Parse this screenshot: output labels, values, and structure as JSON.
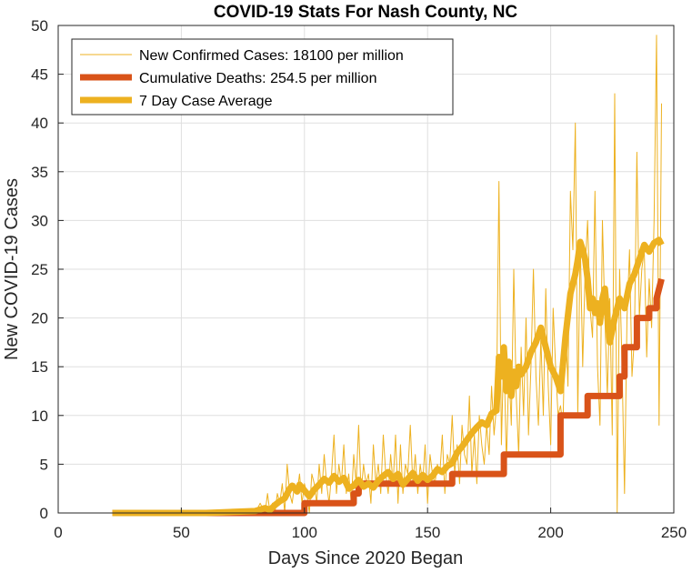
{
  "chart_data": {
    "type": "line",
    "title": "COVID-19 Stats For Nash County, NC",
    "xlabel": "Days Since 2020 Began",
    "ylabel": "New COVID-19 Cases",
    "xlim": [
      0,
      250
    ],
    "ylim": [
      0,
      50
    ],
    "xticks": [
      0,
      50,
      100,
      150,
      200,
      250
    ],
    "yticks": [
      0,
      5,
      10,
      15,
      20,
      25,
      30,
      35,
      40,
      45,
      50
    ],
    "grid": true,
    "legend_position": "top-left",
    "series": [
      {
        "name": "New Confirmed Cases: 18100 per million",
        "color": "#EDB120",
        "style": "thin",
        "x": [
          22,
          40,
          60,
          80,
          82,
          84,
          85,
          86,
          87,
          88,
          89,
          90,
          91,
          92,
          93,
          94,
          95,
          96,
          97,
          98,
          99,
          100,
          101,
          102,
          103,
          104,
          105,
          106,
          107,
          108,
          109,
          110,
          111,
          112,
          113,
          114,
          115,
          116,
          117,
          118,
          119,
          120,
          121,
          122,
          123,
          124,
          125,
          126,
          127,
          128,
          129,
          130,
          131,
          132,
          133,
          134,
          135,
          136,
          137,
          138,
          139,
          140,
          141,
          142,
          143,
          144,
          145,
          146,
          147,
          148,
          149,
          150,
          151,
          152,
          153,
          154,
          155,
          156,
          157,
          158,
          159,
          160,
          161,
          162,
          163,
          164,
          165,
          166,
          167,
          168,
          169,
          170,
          171,
          172,
          173,
          174,
          175,
          176,
          177,
          178,
          179,
          180,
          181,
          182,
          183,
          184,
          185,
          186,
          187,
          188,
          189,
          190,
          191,
          192,
          193,
          194,
          195,
          196,
          197,
          198,
          199,
          200,
          201,
          202,
          203,
          204,
          205,
          206,
          207,
          208,
          209,
          210,
          211,
          212,
          213,
          214,
          215,
          216,
          217,
          218,
          219,
          220,
          221,
          222,
          223,
          224,
          225,
          226,
          227,
          228,
          229,
          230,
          231,
          232,
          233,
          234,
          235,
          236,
          237,
          238,
          239,
          240,
          241,
          242,
          243,
          244,
          245
        ],
        "y": [
          0,
          0,
          0,
          0,
          1,
          0,
          2,
          0,
          1,
          0,
          2,
          1,
          3,
          0,
          5,
          2,
          1,
          3,
          2,
          4,
          1,
          3,
          2,
          0,
          4,
          3,
          1,
          5,
          2,
          6,
          3,
          1,
          4,
          8,
          2,
          5,
          3,
          7,
          2,
          4,
          1,
          6,
          3,
          9,
          2,
          5,
          3,
          4,
          1,
          7,
          3,
          5,
          2,
          8,
          4,
          2,
          6,
          3,
          8,
          1,
          7,
          2,
          5,
          4,
          9,
          3,
          6,
          2,
          5,
          3,
          7,
          1,
          6,
          4,
          3,
          5,
          4,
          8,
          2,
          6,
          5,
          10,
          4,
          7,
          3,
          9,
          6,
          5,
          12,
          4,
          8,
          3,
          10,
          7,
          5,
          9,
          6,
          13,
          8,
          11,
          34,
          7,
          17,
          5,
          15,
          9,
          25,
          12,
          6,
          17,
          10,
          20,
          8,
          15,
          25,
          14,
          9,
          18,
          10,
          23,
          13,
          7,
          21,
          15,
          10,
          11,
          9,
          20,
          13,
          33,
          27,
          40,
          10,
          28,
          15,
          25,
          30,
          21,
          18,
          33,
          15,
          9,
          30,
          20,
          12,
          22,
          8,
          43,
          0,
          25,
          15,
          2,
          20,
          27,
          14,
          18,
          37,
          20,
          25,
          27,
          16,
          24,
          19,
          30,
          49,
          9,
          42
        ]
      },
      {
        "name": "Cumulative Deaths: 254.5 per million",
        "color": "#D95319",
        "style": "thick-step",
        "x": [
          22,
          100,
          100,
          120,
          120,
          122,
          122,
          160,
          160,
          181,
          181,
          204,
          204,
          215,
          215,
          228,
          228,
          230,
          230,
          235,
          235,
          240,
          240,
          243,
          243,
          245
        ],
        "y": [
          0,
          0,
          1,
          1,
          2,
          2,
          3,
          3,
          4,
          4,
          6,
          6,
          10,
          10,
          12,
          12,
          14,
          14,
          17,
          17,
          20,
          20,
          21,
          21,
          22,
          24
        ]
      },
      {
        "name": "7 Day Case Average",
        "color": "#EDB120",
        "style": "thick",
        "x": [
          22,
          40,
          60,
          80,
          84,
          86,
          88,
          90,
          92,
          94,
          95,
          97,
          98,
          100,
          102,
          104,
          106,
          108,
          110,
          112,
          114,
          116,
          118,
          120,
          122,
          124,
          126,
          128,
          130,
          132,
          134,
          136,
          138,
          140,
          142,
          144,
          146,
          148,
          150,
          152,
          154,
          156,
          158,
          160,
          162,
          164,
          166,
          168,
          170,
          172,
          174,
          176,
          178,
          179,
          180,
          181,
          182,
          183,
          184,
          185,
          186,
          187,
          188,
          190,
          192,
          194,
          196,
          198,
          200,
          202,
          204,
          206,
          208,
          210,
          211,
          212,
          213,
          214,
          215,
          216,
          217,
          218,
          219,
          220,
          221,
          222,
          224,
          226,
          228,
          230,
          232,
          234,
          236,
          238,
          240,
          242,
          244,
          245
        ],
        "y": [
          0,
          0,
          0,
          0.2,
          0.5,
          0.3,
          0.8,
          1.2,
          1.5,
          2.5,
          2.8,
          2.2,
          2.9,
          2.3,
          1.7,
          2.4,
          2.9,
          3.5,
          3.1,
          3.8,
          3.2,
          3.6,
          2.5,
          2.8,
          3.4,
          2.7,
          3.0,
          2.6,
          3.3,
          3.8,
          4.2,
          3.5,
          4.0,
          2.9,
          3.5,
          4.1,
          3.3,
          3.9,
          3.4,
          3.8,
          4.5,
          4.2,
          4.8,
          5.1,
          6.2,
          6.8,
          7.5,
          8.2,
          8.8,
          9.3,
          9.0,
          10.2,
          10.5,
          16.0,
          14.0,
          17.0,
          12.5,
          15.5,
          12.0,
          14.5,
          13.0,
          15.0,
          14.2,
          15.0,
          16.5,
          17.5,
          19.0,
          17.0,
          15.0,
          14.0,
          12.5,
          18.0,
          22.5,
          24.5,
          26.0,
          27.8,
          27.0,
          26.0,
          24.0,
          21.0,
          22.0,
          20.5,
          21.5,
          19.5,
          22.0,
          23.0,
          17.5,
          20.0,
          22.0,
          21.0,
          23.5,
          24.5,
          26.0,
          27.5,
          26.8,
          27.7,
          28.0,
          27.5
        ]
      }
    ]
  }
}
